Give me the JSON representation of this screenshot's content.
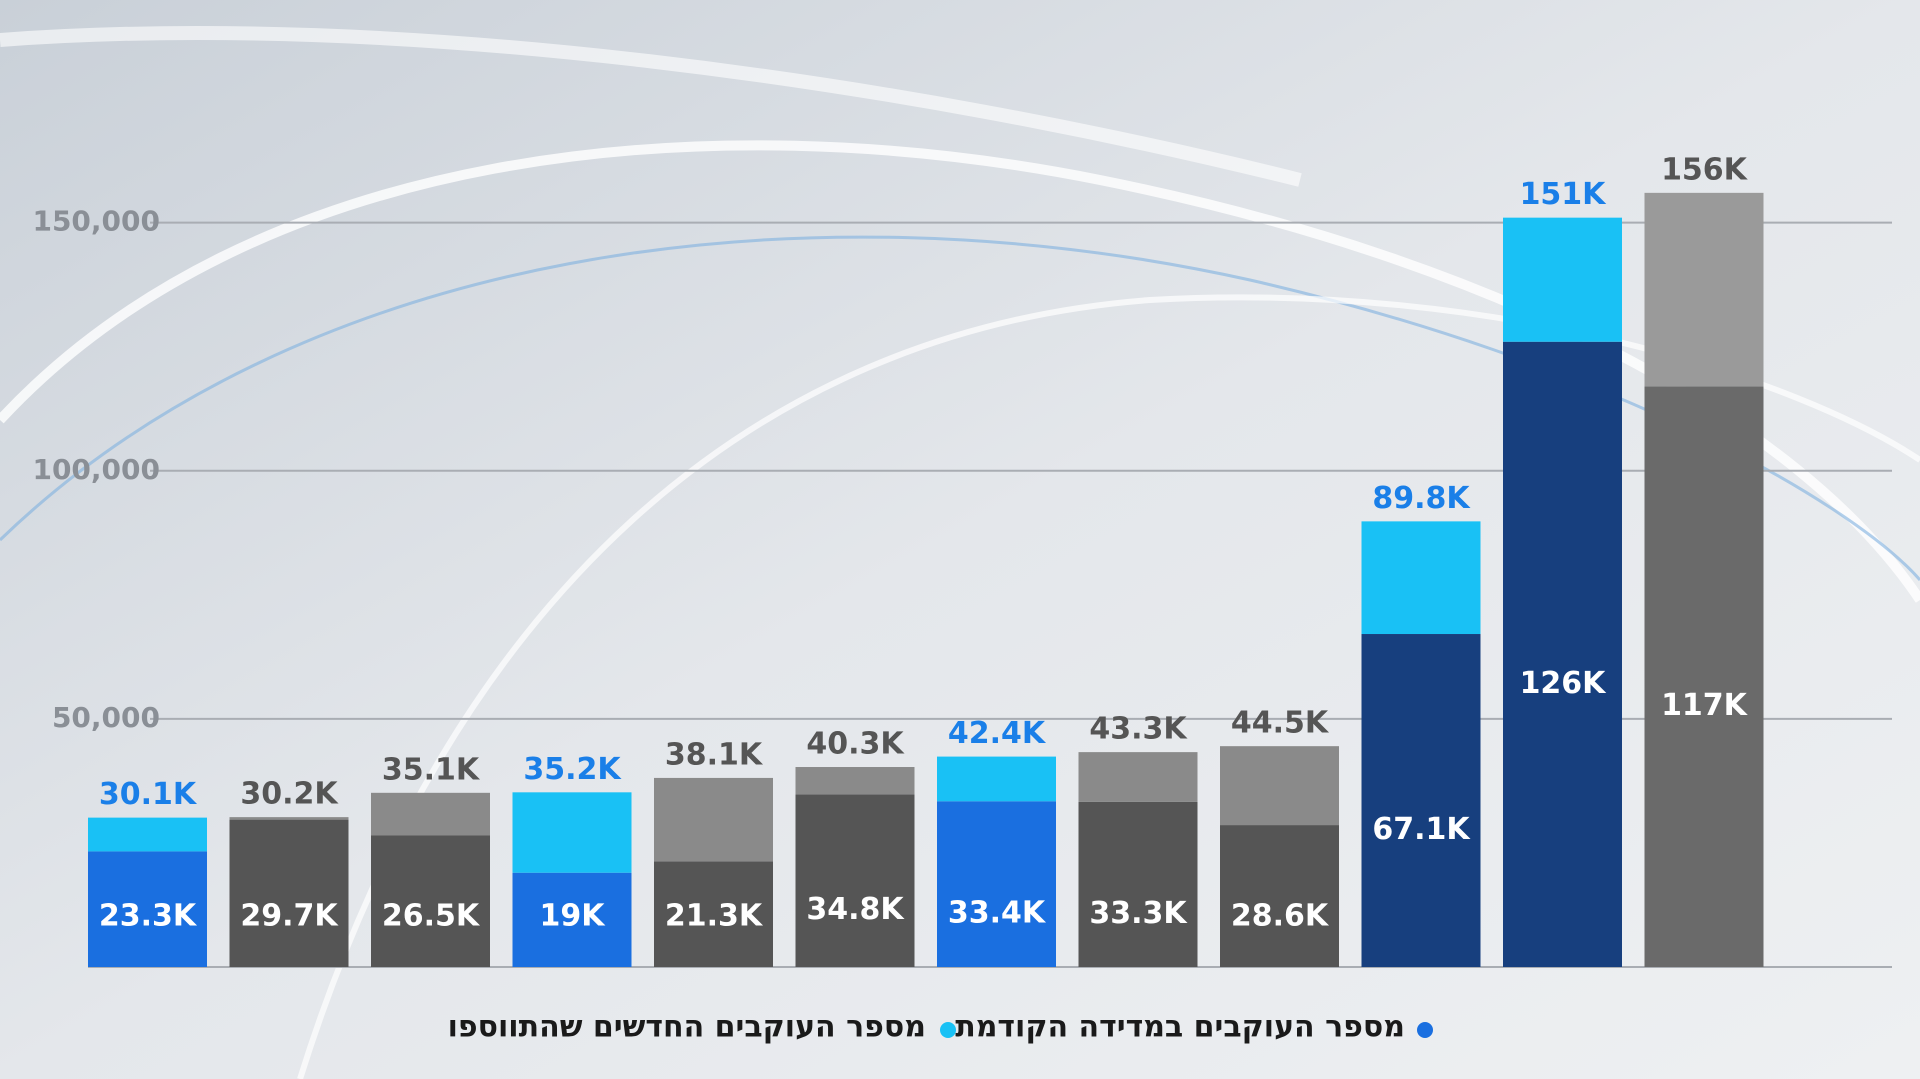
{
  "chart_data": {
    "type": "stacked-bar",
    "categories": [
      null,
      null,
      null,
      null,
      null,
      null,
      null,
      null,
      null,
      null,
      null,
      null
    ],
    "series": [
      {
        "name": "מספר העוקבים במדידה הקודמת",
        "color": "#1a6fe0",
        "colors": [
          "#1a6fe0",
          "#555555",
          "#555555",
          "#1a6fe0",
          "#555555",
          "#555555",
          "#1a6fe0",
          "#555555",
          "#555555",
          "#173f7e",
          "#173f7e",
          "#6a6a6a"
        ],
        "values": [
          23300,
          29700,
          26500,
          19000,
          21300,
          34800,
          33400,
          33300,
          28600,
          67100,
          126000,
          117000
        ],
        "value_labels": [
          "23.3K",
          "29.7K",
          "26.5K",
          "19K",
          "21.3K",
          "34.8K",
          "33.4K",
          "33.3K",
          "28.6K",
          "67.1K",
          "126K",
          "117K"
        ]
      },
      {
        "name": "מספר העוקבים החדשים שהתווספו",
        "color": "#19c1f5",
        "colors": [
          "#19c1f5",
          "#8a8a8a",
          "#8a8a8a",
          "#19c1f5",
          "#8a8a8a",
          "#8a8a8a",
          "#19c1f5",
          "#8a8a8a",
          "#8a8a8a",
          "#19c1f5",
          "#19c1f5",
          "#9a9a9a"
        ],
        "values": [
          6800,
          500,
          8600,
          16200,
          16800,
          5500,
          9000,
          10000,
          15900,
          22700,
          25000,
          39000
        ]
      }
    ],
    "totals": [
      30100,
      30200,
      35100,
      35200,
      38100,
      40300,
      42400,
      43300,
      44500,
      89800,
      151000,
      156000
    ],
    "total_labels": [
      "30.1K",
      "30.2K",
      "35.1K",
      "35.2K",
      "38.1K",
      "40.3K",
      "42.4K",
      "43.3K",
      "44.5K",
      "89.8K",
      "151K",
      "156K"
    ],
    "total_label_colors": [
      "#1a7fe8",
      "#555555",
      "#555555",
      "#1a7fe8",
      "#555555",
      "#555555",
      "#1a7fe8",
      "#555555",
      "#555555",
      "#1a7fe8",
      "#1a7fe8",
      "#555555"
    ],
    "ylim": [
      0,
      160000
    ],
    "yticks": [
      {
        "value": 50000,
        "label": "50,000"
      },
      {
        "value": 100000,
        "label": "100,000"
      },
      {
        "value": 150000,
        "label": "150,000"
      }
    ],
    "grid": true
  }
}
